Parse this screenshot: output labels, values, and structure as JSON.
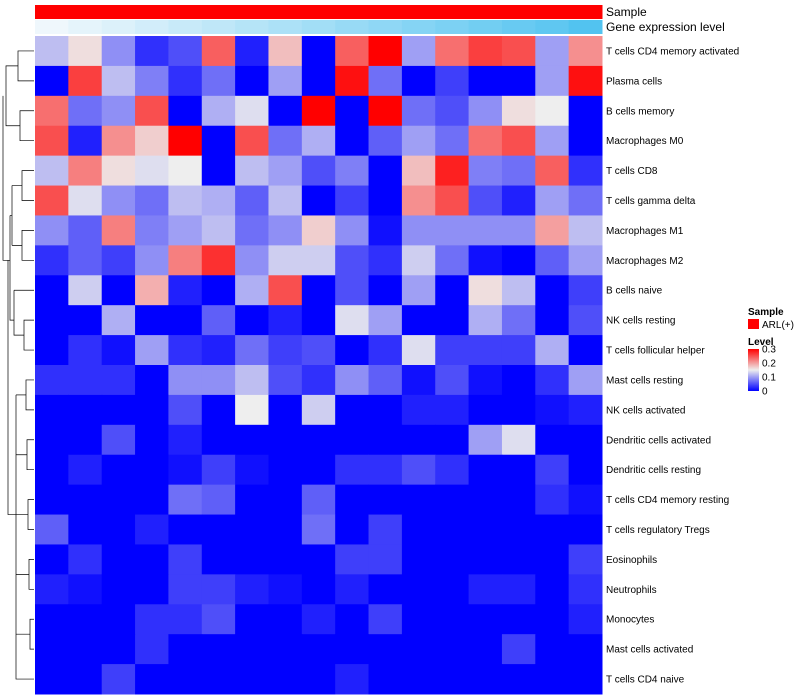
{
  "chart_data": {
    "type": "heatmap",
    "annotation_tracks": [
      {
        "name": "Sample",
        "color": "#FF0000"
      },
      {
        "name": "Gene expression level",
        "color_low": "#F2F8FC",
        "color_high": "#52C3F0"
      }
    ],
    "rows": [
      "T cells CD4 memory activated",
      "Plasma cells",
      "B cells memory",
      "Macrophages M0",
      "T cells CD8",
      "T cells gamma delta",
      "Macrophages M1",
      "Macrophages M2",
      "B cells naive",
      "NK cells resting",
      "T cells follicular helper",
      "Mast cells resting",
      "NK cells activated",
      "Dendritic cells activated",
      "Dendritic cells resting",
      "T cells CD4 memory resting",
      "T cells regulatory  Tregs",
      "Eosinophils",
      "Neutrophils",
      "Monocytes",
      "Mast cells activated",
      "T cells CD4 naive"
    ],
    "n_columns": 17,
    "gene_expression_level": [
      0.02,
      0.08,
      0.14,
      0.2,
      0.26,
      0.32,
      0.38,
      0.44,
      0.5,
      0.56,
      0.62,
      0.68,
      0.74,
      0.8,
      0.86,
      0.92,
      1.0
    ],
    "values": [
      [
        0.12,
        0.16,
        0.09,
        0.03,
        0.05,
        0.24,
        0.02,
        0.18,
        0.0,
        0.24,
        0.3,
        0.1,
        0.23,
        0.26,
        0.25,
        0.1,
        0.21
      ],
      [
        0.0,
        0.26,
        0.12,
        0.08,
        0.03,
        0.07,
        0.0,
        0.1,
        0.0,
        0.29,
        0.07,
        0.0,
        0.04,
        0.0,
        0.0,
        0.1,
        0.29
      ],
      [
        0.23,
        0.07,
        0.09,
        0.25,
        0.0,
        0.11,
        0.14,
        0.0,
        0.3,
        0.0,
        0.3,
        0.07,
        0.05,
        0.09,
        0.16,
        0.15,
        0.0
      ],
      [
        0.25,
        0.02,
        0.21,
        0.17,
        0.3,
        0.0,
        0.25,
        0.07,
        0.11,
        0.0,
        0.06,
        0.1,
        0.07,
        0.23,
        0.25,
        0.1,
        0.0
      ],
      [
        0.12,
        0.22,
        0.16,
        0.14,
        0.15,
        0.0,
        0.12,
        0.1,
        0.05,
        0.08,
        0.0,
        0.18,
        0.28,
        0.08,
        0.07,
        0.24,
        0.03
      ],
      [
        0.25,
        0.14,
        0.09,
        0.07,
        0.12,
        0.11,
        0.06,
        0.12,
        0.0,
        0.04,
        0.0,
        0.21,
        0.25,
        0.05,
        0.02,
        0.1,
        0.07
      ],
      [
        0.09,
        0.06,
        0.22,
        0.08,
        0.1,
        0.12,
        0.07,
        0.09,
        0.17,
        0.09,
        0.01,
        0.09,
        0.09,
        0.09,
        0.09,
        0.2,
        0.12
      ],
      [
        0.03,
        0.06,
        0.04,
        0.09,
        0.22,
        0.27,
        0.09,
        0.13,
        0.13,
        0.05,
        0.03,
        0.13,
        0.07,
        0.01,
        0.0,
        0.06,
        0.1
      ],
      [
        0.0,
        0.13,
        0.0,
        0.19,
        0.02,
        0.0,
        0.11,
        0.25,
        0.0,
        0.05,
        0.0,
        0.1,
        0.0,
        0.16,
        0.12,
        0.0,
        0.04
      ],
      [
        0.0,
        0.0,
        0.11,
        0.0,
        0.0,
        0.06,
        0.0,
        0.02,
        0.0,
        0.14,
        0.1,
        0.0,
        0.0,
        0.11,
        0.07,
        0.0,
        0.05
      ],
      [
        0.0,
        0.03,
        0.01,
        0.1,
        0.03,
        0.02,
        0.07,
        0.04,
        0.05,
        0.0,
        0.03,
        0.14,
        0.04,
        0.04,
        0.04,
        0.11,
        0.0
      ],
      [
        0.03,
        0.03,
        0.03,
        0.0,
        0.09,
        0.09,
        0.12,
        0.05,
        0.03,
        0.09,
        0.06,
        0.01,
        0.05,
        0.01,
        0.0,
        0.03,
        0.1
      ],
      [
        0.0,
        0.0,
        0.0,
        0.0,
        0.05,
        0.0,
        0.15,
        0.0,
        0.13,
        0.0,
        0.0,
        0.02,
        0.02,
        0.0,
        0.0,
        0.01,
        0.02
      ],
      [
        0.0,
        0.0,
        0.05,
        0.0,
        0.02,
        0.0,
        0.0,
        0.0,
        0.0,
        0.0,
        0.0,
        0.0,
        0.0,
        0.1,
        0.14,
        0.0,
        0.0
      ],
      [
        0.0,
        0.02,
        0.0,
        0.0,
        0.01,
        0.04,
        0.01,
        0.0,
        0.0,
        0.03,
        0.03,
        0.05,
        0.03,
        0.0,
        0.0,
        0.04,
        0.0
      ],
      [
        0.0,
        0.0,
        0.0,
        0.0,
        0.07,
        0.06,
        0.0,
        0.0,
        0.06,
        0.0,
        0.0,
        0.0,
        0.0,
        0.0,
        0.0,
        0.03,
        0.01
      ],
      [
        0.06,
        0.0,
        0.0,
        0.02,
        0.0,
        0.0,
        0.0,
        0.0,
        0.07,
        0.0,
        0.04,
        0.0,
        0.0,
        0.0,
        0.0,
        0.0,
        0.0
      ],
      [
        0.0,
        0.03,
        0.0,
        0.0,
        0.04,
        0.0,
        0.0,
        0.0,
        0.0,
        0.04,
        0.04,
        0.0,
        0.0,
        0.0,
        0.0,
        0.0,
        0.04
      ],
      [
        0.02,
        0.01,
        0.0,
        0.0,
        0.04,
        0.04,
        0.02,
        0.01,
        0.0,
        0.02,
        0.0,
        0.0,
        0.0,
        0.02,
        0.02,
        0.0,
        0.03
      ],
      [
        0.0,
        0.0,
        0.0,
        0.03,
        0.03,
        0.05,
        0.0,
        0.0,
        0.02,
        0.0,
        0.04,
        0.0,
        0.0,
        0.0,
        0.0,
        0.0,
        0.02
      ],
      [
        0.0,
        0.0,
        0.0,
        0.03,
        0.0,
        0.0,
        0.0,
        0.0,
        0.0,
        0.0,
        0.0,
        0.0,
        0.0,
        0.0,
        0.04,
        0.0,
        0.0
      ],
      [
        0.0,
        0.0,
        0.04,
        0.0,
        0.0,
        0.0,
        0.0,
        0.0,
        0.0,
        0.02,
        0.0,
        0.0,
        0.0,
        0.0,
        0.0,
        0.0,
        0.0
      ]
    ],
    "color_scale": {
      "min": 0,
      "mid": 0.15,
      "max": 0.3,
      "low": "#0000FF",
      "mid_color": "#EEEEEE",
      "high": "#FF0000"
    },
    "legend": {
      "placement": "right",
      "sample": {
        "title": "Sample",
        "entry": "ARL(+)",
        "color": "#FF0000"
      },
      "level": {
        "title": "Level",
        "ticks": [
          {
            "value": 0.3,
            "label": "0.3"
          },
          {
            "value": 0.2,
            "label": "0.2"
          },
          {
            "value": 0.1,
            "label": "0.1"
          },
          {
            "value": 0,
            "label": "0"
          }
        ]
      }
    },
    "dendrogram": "left",
    "grid": false
  }
}
